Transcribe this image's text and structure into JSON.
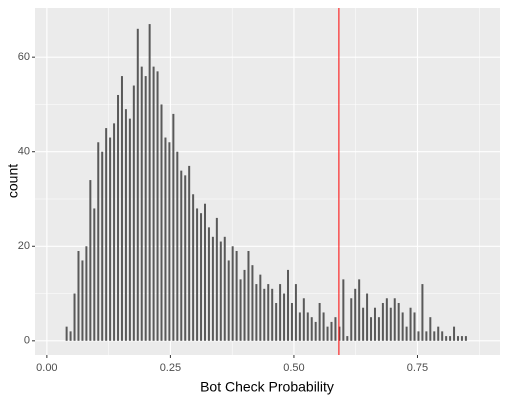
{
  "chart_data": {
    "type": "bar",
    "x_label": "Bot Check Probability",
    "y_label": "count",
    "x": [
      0.04,
      0.048,
      0.056,
      0.064,
      0.072,
      0.08,
      0.088,
      0.096,
      0.104,
      0.112,
      0.12,
      0.128,
      0.136,
      0.144,
      0.152,
      0.16,
      0.168,
      0.176,
      0.184,
      0.192,
      0.2,
      0.208,
      0.216,
      0.224,
      0.232,
      0.24,
      0.248,
      0.256,
      0.264,
      0.272,
      0.28,
      0.288,
      0.296,
      0.304,
      0.312,
      0.32,
      0.328,
      0.336,
      0.344,
      0.352,
      0.36,
      0.368,
      0.376,
      0.384,
      0.392,
      0.4,
      0.408,
      0.416,
      0.424,
      0.432,
      0.44,
      0.448,
      0.456,
      0.464,
      0.472,
      0.48,
      0.488,
      0.496,
      0.504,
      0.512,
      0.52,
      0.528,
      0.536,
      0.544,
      0.552,
      0.56,
      0.568,
      0.576,
      0.584,
      0.592,
      0.6,
      0.608,
      0.616,
      0.624,
      0.632,
      0.64,
      0.648,
      0.656,
      0.664,
      0.672,
      0.68,
      0.688,
      0.696,
      0.704,
      0.712,
      0.72,
      0.728,
      0.736,
      0.744,
      0.752,
      0.76,
      0.768,
      0.776,
      0.784,
      0.792,
      0.8,
      0.808,
      0.816,
      0.824,
      0.832,
      0.84,
      0.848
    ],
    "values": [
      3,
      2,
      10,
      19,
      17,
      20,
      34,
      28,
      42,
      40,
      45,
      43,
      46,
      52,
      56,
      49,
      47,
      54,
      66,
      58,
      56,
      67,
      58,
      57,
      50,
      43,
      42,
      48,
      40,
      36,
      35,
      37,
      31,
      28,
      27,
      29,
      24,
      22,
      26,
      21,
      22,
      17,
      20,
      19,
      13,
      15,
      19,
      16,
      12,
      14,
      11,
      12,
      11,
      8,
      12,
      10,
      15,
      8,
      12,
      6,
      9,
      6,
      5,
      4,
      8,
      6,
      3,
      4,
      5,
      3,
      13,
      1,
      9,
      11,
      13,
      7,
      10,
      5,
      7,
      5,
      8,
      9,
      7,
      9,
      8,
      6,
      3,
      7,
      6,
      2,
      12,
      2,
      5,
      2,
      3,
      2,
      1,
      1,
      3,
      1,
      1,
      1
    ],
    "color": "#595959",
    "xlim": [
      -0.024,
      0.917
    ],
    "ylim": [
      -3,
      70.4
    ],
    "xticks": [
      {
        "value": 0,
        "label": "0.00"
      },
      {
        "value": 0.25,
        "label": "0.25"
      },
      {
        "value": 0.5,
        "label": "0.50"
      },
      {
        "value": 0.75,
        "label": "0.75"
      }
    ],
    "yticks": [
      0,
      20,
      40,
      60
    ],
    "grid": true,
    "vline": 0.591,
    "vline_color": "#ff0000"
  }
}
